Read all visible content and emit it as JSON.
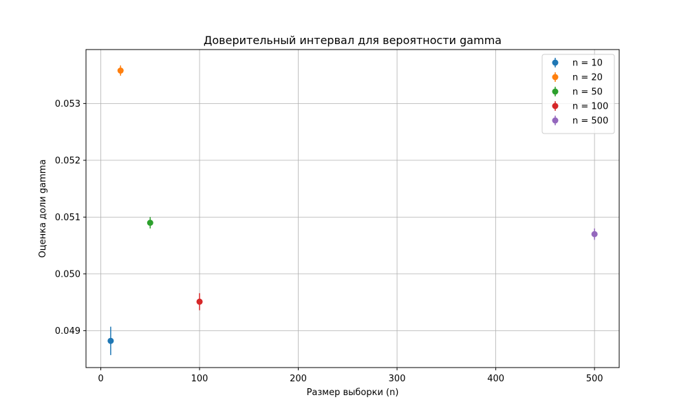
{
  "chart_data": {
    "type": "scatter",
    "title": "Доверительный интервал для вероятности gamma",
    "xlabel": "Размер выборки (n)",
    "ylabel": "Оценка доли gamma",
    "xlim": [
      -15,
      525
    ],
    "ylim": [
      0.04835,
      0.05395
    ],
    "x_ticks": [
      0,
      100,
      200,
      300,
      400,
      500
    ],
    "x_tick_labels": [
      "0",
      "100",
      "200",
      "300",
      "400",
      "500"
    ],
    "y_ticks": [
      0.049,
      0.05,
      0.051,
      0.052,
      0.053
    ],
    "y_tick_labels": [
      "0.049",
      "0.050",
      "0.051",
      "0.052",
      "0.053"
    ],
    "grid": true,
    "legend_position": "top-right",
    "error_bars": true,
    "series": [
      {
        "name": "n = 10",
        "color": "#1f77b4",
        "x": 10,
        "y": 0.04882,
        "yerr": 0.00025
      },
      {
        "name": "n = 20",
        "color": "#ff7f0e",
        "x": 20,
        "y": 0.05358,
        "yerr": 9e-05
      },
      {
        "name": "n = 50",
        "color": "#2ca02c",
        "x": 50,
        "y": 0.0509,
        "yerr": 0.0001
      },
      {
        "name": "n = 100",
        "color": "#d62728",
        "x": 100,
        "y": 0.04951,
        "yerr": 0.00015
      },
      {
        "name": "n = 500",
        "color": "#9467bd",
        "x": 500,
        "y": 0.0507,
        "yerr": 0.0001
      }
    ]
  }
}
